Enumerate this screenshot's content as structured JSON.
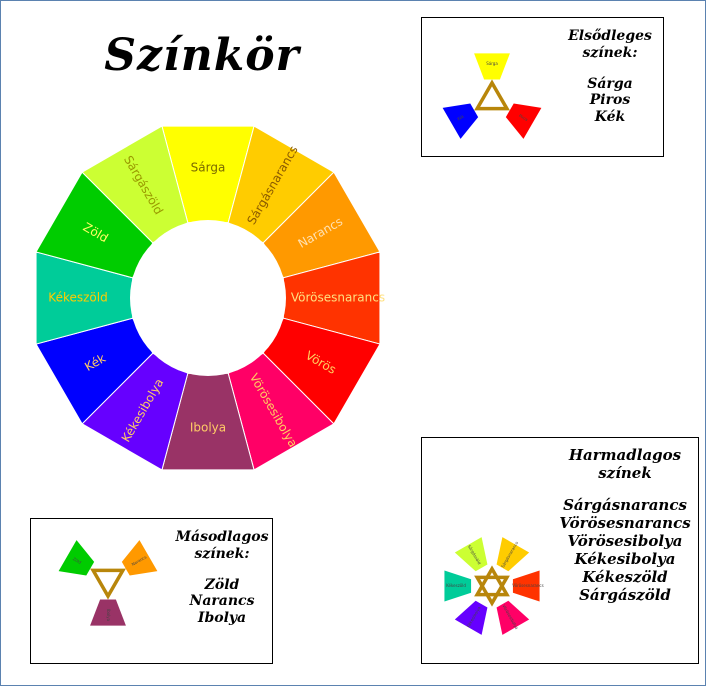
{
  "title": "Színkör",
  "wheel": {
    "segments": [
      {
        "label": "Sárga",
        "color": "#ffff00",
        "text_color": "#7a6a00"
      },
      {
        "label": "Sárgásnarancs",
        "color": "#ffcc00",
        "text_color": "#8a5a00"
      },
      {
        "label": "Narancs",
        "color": "#ff9900",
        "text_color": "#ffe0b0"
      },
      {
        "label": "Vörösesnarancs",
        "color": "#ff3300",
        "text_color": "#ffe080"
      },
      {
        "label": "Vörös",
        "color": "#ff0000",
        "text_color": "#ffd060"
      },
      {
        "label": "Vörösesibolya",
        "color": "#ff0066",
        "text_color": "#ffd060"
      },
      {
        "label": "Ibolya",
        "color": "#993366",
        "text_color": "#ffcc66"
      },
      {
        "label": "Kékesibolya",
        "color": "#6600ff",
        "text_color": "#ffcc66"
      },
      {
        "label": "Kék",
        "color": "#0000ff",
        "text_color": "#ffcc66"
      },
      {
        "label": "Kékeszöld",
        "color": "#00cc99",
        "text_color": "#ffcc00"
      },
      {
        "label": "Zöld",
        "color": "#00cc00",
        "text_color": "#ffff66"
      },
      {
        "label": "Sárgászöld",
        "color": "#ccff33",
        "text_color": "#999900"
      }
    ]
  },
  "primary": {
    "heading": [
      "Elsődleges",
      "színek:"
    ],
    "colors": [
      "Sárga",
      "Piros",
      "Kék"
    ],
    "swatches": [
      {
        "label": "Sárga",
        "color": "#ffff00"
      },
      {
        "label": "Piros",
        "color": "#ff0000"
      },
      {
        "label": "Kék",
        "color": "#0000ff"
      }
    ],
    "symbol_color": "#b8860b"
  },
  "secondary": {
    "heading": [
      "Másodlagos",
      "színek:"
    ],
    "colors": [
      "Zöld",
      "Narancs",
      "Ibolya"
    ],
    "swatches": [
      {
        "label": "Zöld",
        "color": "#00cc00"
      },
      {
        "label": "Narancs",
        "color": "#ff9900"
      },
      {
        "label": "Ibolya",
        "color": "#993366"
      }
    ],
    "symbol_color": "#b8860b"
  },
  "tertiary": {
    "heading": [
      "Harmadlagos",
      "színek"
    ],
    "colors": [
      "Sárgásnarancs",
      "Vörösesnarancs",
      "Vörösesibolya",
      "Kékesibolya",
      "Kékeszöld",
      "Sárgászöld"
    ],
    "swatches": [
      {
        "label": "Sárgásnarancs",
        "color": "#ffcc00"
      },
      {
        "label": "Vörösesnarancs",
        "color": "#ff3300"
      },
      {
        "label": "Vörösesibolya",
        "color": "#ff0066"
      },
      {
        "label": "Kékesibolya",
        "color": "#6600ff"
      },
      {
        "label": "Kékeszöld",
        "color": "#00cc99"
      },
      {
        "label": "Sárgászöld",
        "color": "#ccff33"
      }
    ],
    "symbol_color": "#b8860b"
  }
}
